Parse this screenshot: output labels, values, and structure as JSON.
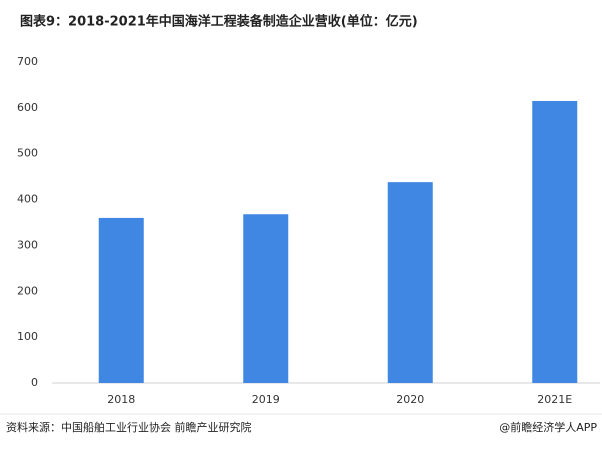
{
  "chart_data": {
    "type": "bar",
    "title": "图表9：2018-2021年中国海洋工程装备制造企业营收(单位：亿元)",
    "categories": [
      "2018",
      "2019",
      "2020",
      "2021E"
    ],
    "values": [
      360,
      368,
      438,
      615
    ],
    "color": "#3f87e3",
    "ylim": [
      0,
      700
    ],
    "yticks": [
      0,
      100,
      200,
      300,
      400,
      500,
      600,
      700
    ],
    "grid": false,
    "source": "资料来源：中国船舶工业行业协会 前瞻产业研究院",
    "credit": "@前瞻经济学人APP"
  }
}
